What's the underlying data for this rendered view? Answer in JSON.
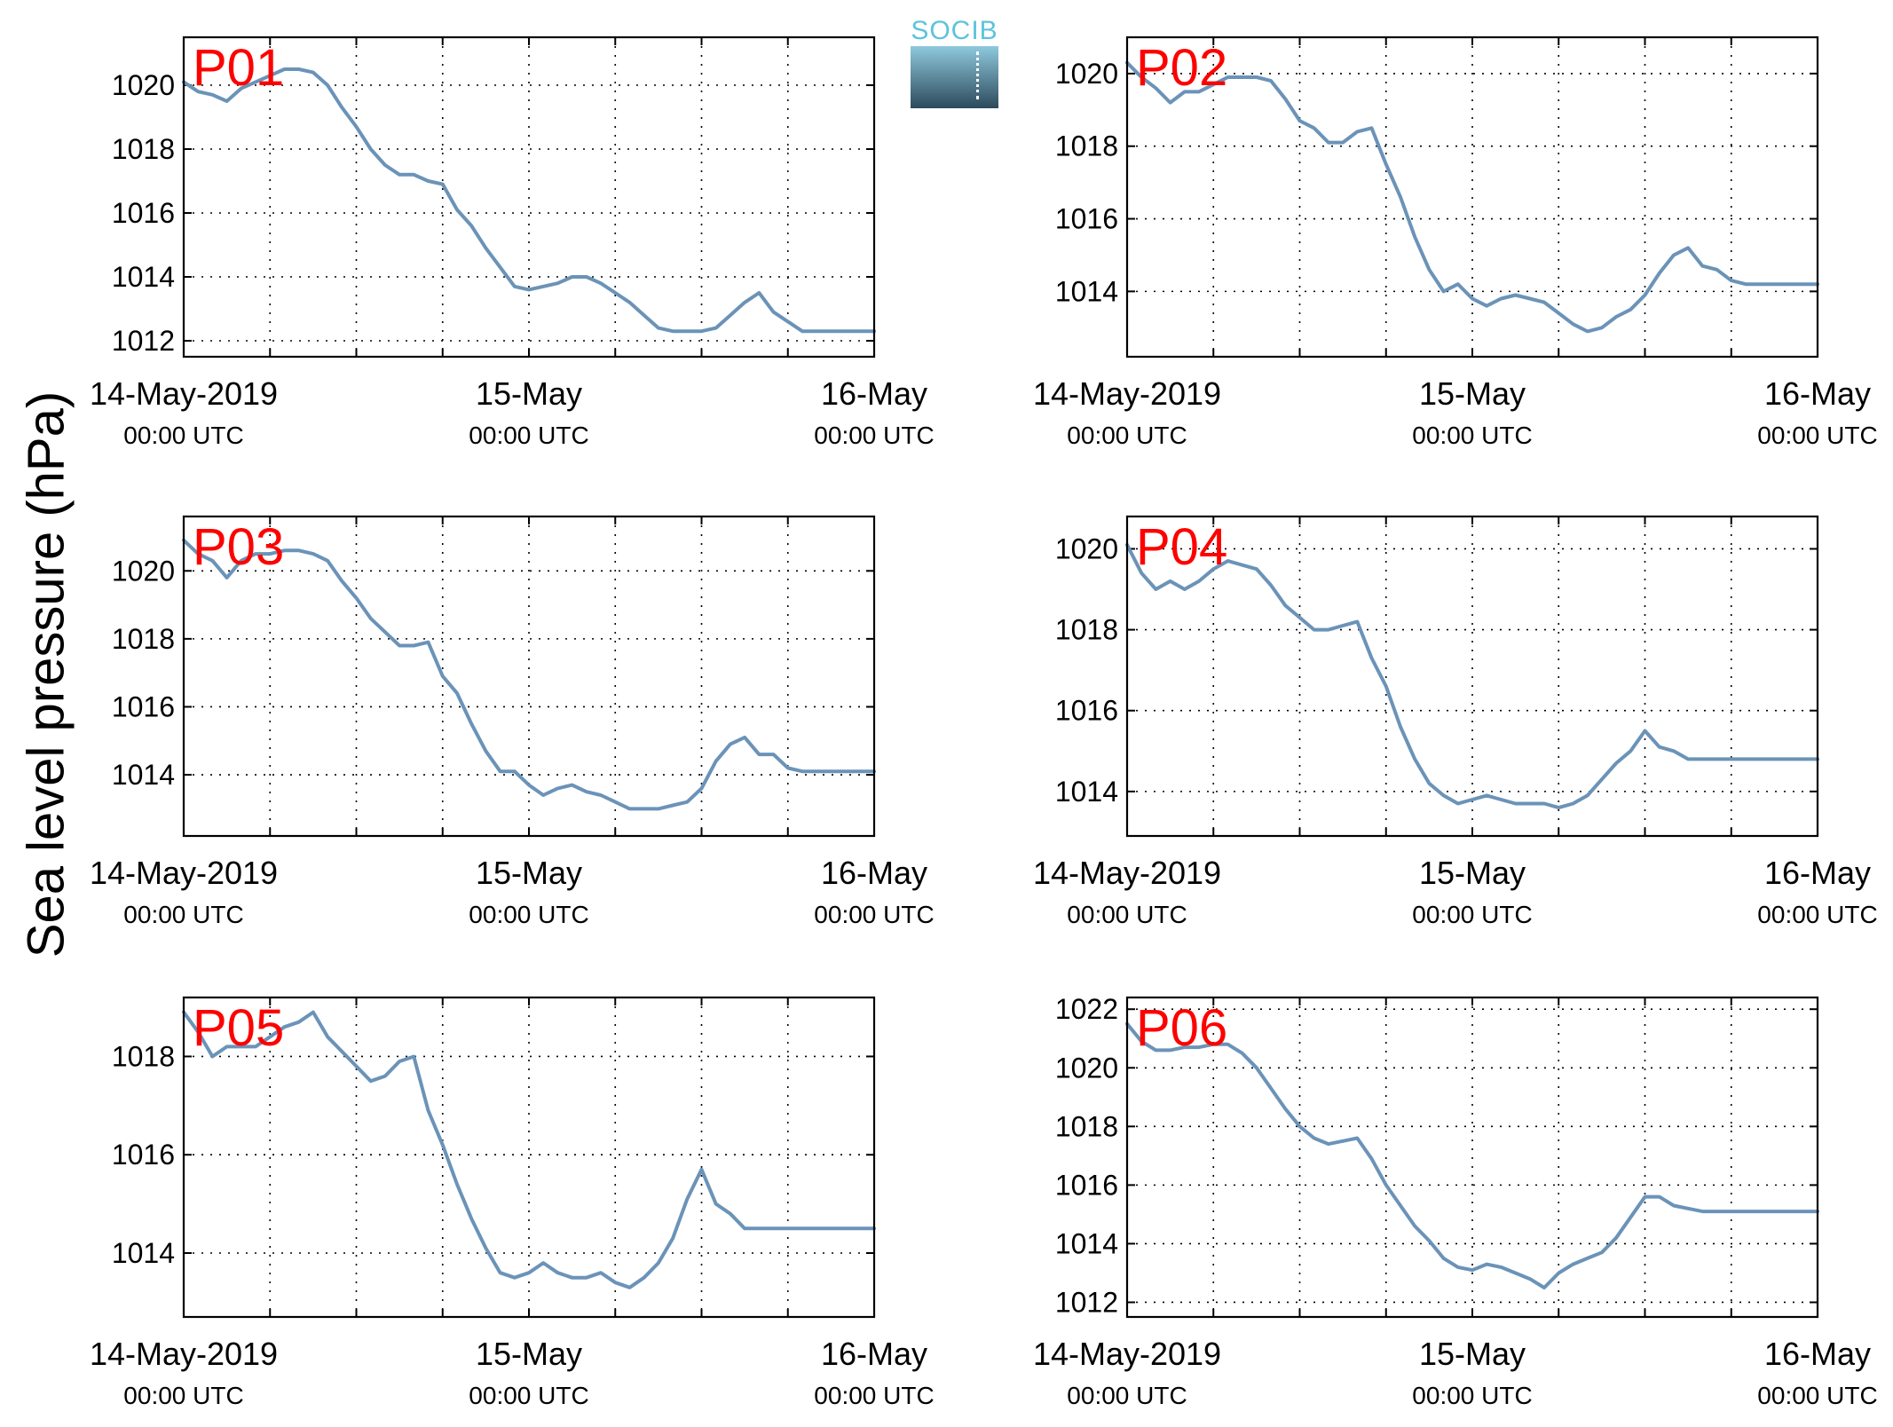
{
  "figure": {
    "ylabel": "Sea level pressure (hPa)",
    "logo_text": "SOCIB",
    "line_color": "#6b93b8",
    "station_label_color": "#ff0000"
  },
  "chart_data": [
    {
      "type": "line",
      "station": "P01",
      "x_range_hours": [
        0,
        48
      ],
      "ylim": [
        1011.5,
        1021.5
      ],
      "yticks": [
        1012,
        1014,
        1016,
        1018,
        1020
      ],
      "xtick_labels": [
        [
          "14-May-2019",
          "00:00 UTC"
        ],
        [
          "15-May",
          "00:00 UTC"
        ],
        [
          "16-May",
          "00:00 UTC"
        ]
      ],
      "grid": true,
      "series": [
        {
          "x_hours": [
            0,
            1,
            2,
            3,
            4,
            5,
            6,
            7,
            8,
            9,
            10,
            11,
            12,
            13,
            14,
            15,
            16,
            17,
            18,
            19,
            20,
            21,
            22,
            23,
            24,
            25,
            26,
            27,
            28,
            29,
            30,
            31,
            32,
            33,
            34,
            35,
            36,
            37,
            38,
            39,
            40,
            41,
            42,
            43,
            44,
            45,
            46,
            47,
            48
          ],
          "values": [
            1020.1,
            1019.8,
            1019.7,
            1019.5,
            1019.9,
            1020.1,
            1020.3,
            1020.5,
            1020.5,
            1020.4,
            1020.0,
            1019.3,
            1018.7,
            1018.0,
            1017.5,
            1017.2,
            1017.2,
            1017.0,
            1016.9,
            1016.1,
            1015.6,
            1014.9,
            1014.3,
            1013.7,
            1013.6,
            1013.7,
            1013.8,
            1014.0,
            1014.0,
            1013.8,
            1013.5,
            1013.2,
            1012.8,
            1012.4,
            1012.3,
            1012.3,
            1012.3,
            1012.4,
            1012.8,
            1013.2,
            1013.5,
            1012.9,
            1012.6,
            1012.3,
            1012.3,
            1012.3,
            1012.3,
            1012.3,
            1012.3
          ]
        }
      ]
    },
    {
      "type": "line",
      "station": "P02",
      "x_range_hours": [
        0,
        48
      ],
      "ylim": [
        1012.2,
        1021.0
      ],
      "yticks": [
        1014,
        1016,
        1018,
        1020
      ],
      "xtick_labels": [
        [
          "14-May-2019",
          "00:00 UTC"
        ],
        [
          "15-May",
          "00:00 UTC"
        ],
        [
          "16-May",
          "00:00 UTC"
        ]
      ],
      "grid": true,
      "series": [
        {
          "x_hours": [
            0,
            1,
            2,
            3,
            4,
            5,
            6,
            7,
            8,
            9,
            10,
            11,
            12,
            13,
            14,
            15,
            16,
            17,
            18,
            19,
            20,
            21,
            22,
            23,
            24,
            25,
            26,
            27,
            28,
            29,
            30,
            31,
            32,
            33,
            34,
            35,
            36,
            37,
            38,
            39,
            40,
            41,
            42,
            43,
            44,
            45,
            46,
            47,
            48
          ],
          "values": [
            1020.3,
            1019.9,
            1019.6,
            1019.2,
            1019.5,
            1019.5,
            1019.7,
            1019.9,
            1019.9,
            1019.9,
            1019.8,
            1019.3,
            1018.7,
            1018.5,
            1018.1,
            1018.1,
            1018.4,
            1018.5,
            1017.5,
            1016.6,
            1015.5,
            1014.6,
            1014.0,
            1014.2,
            1013.8,
            1013.6,
            1013.8,
            1013.9,
            1013.8,
            1013.7,
            1013.4,
            1013.1,
            1012.9,
            1013.0,
            1013.3,
            1013.5,
            1013.9,
            1014.5,
            1015.0,
            1015.2,
            1014.7,
            1014.6,
            1014.3,
            1014.2,
            1014.2,
            1014.2,
            1014.2,
            1014.2,
            1014.2
          ]
        }
      ]
    },
    {
      "type": "line",
      "station": "P03",
      "x_range_hours": [
        0,
        48
      ],
      "ylim": [
        1012.2,
        1021.6
      ],
      "yticks": [
        1014,
        1016,
        1018,
        1020
      ],
      "xtick_labels": [
        [
          "14-May-2019",
          "00:00 UTC"
        ],
        [
          "15-May",
          "00:00 UTC"
        ],
        [
          "16-May",
          "00:00 UTC"
        ]
      ],
      "grid": true,
      "series": [
        {
          "x_hours": [
            0,
            1,
            2,
            3,
            4,
            5,
            6,
            7,
            8,
            9,
            10,
            11,
            12,
            13,
            14,
            15,
            16,
            17,
            18,
            19,
            20,
            21,
            22,
            23,
            24,
            25,
            26,
            27,
            28,
            29,
            30,
            31,
            32,
            33,
            34,
            35,
            36,
            37,
            38,
            39,
            40,
            41,
            42,
            43,
            44,
            45,
            46,
            47,
            48
          ],
          "values": [
            1020.9,
            1020.5,
            1020.3,
            1019.8,
            1020.3,
            1020.5,
            1020.5,
            1020.6,
            1020.6,
            1020.5,
            1020.3,
            1019.7,
            1019.2,
            1018.6,
            1018.2,
            1017.8,
            1017.8,
            1017.9,
            1016.9,
            1016.4,
            1015.5,
            1014.7,
            1014.1,
            1014.1,
            1013.7,
            1013.4,
            1013.6,
            1013.7,
            1013.5,
            1013.4,
            1013.2,
            1013.0,
            1013.0,
            1013.0,
            1013.1,
            1013.2,
            1013.6,
            1014.4,
            1014.9,
            1015.1,
            1014.6,
            1014.6,
            1014.2,
            1014.1,
            1014.1,
            1014.1,
            1014.1,
            1014.1,
            1014.1
          ]
        }
      ]
    },
    {
      "type": "line",
      "station": "P04",
      "x_range_hours": [
        0,
        48
      ],
      "ylim": [
        1012.9,
        1020.8
      ],
      "yticks": [
        1014,
        1016,
        1018,
        1020
      ],
      "xtick_labels": [
        [
          "14-May-2019",
          "00:00 UTC"
        ],
        [
          "15-May",
          "00:00 UTC"
        ],
        [
          "16-May",
          "00:00 UTC"
        ]
      ],
      "grid": true,
      "series": [
        {
          "x_hours": [
            0,
            1,
            2,
            3,
            4,
            5,
            6,
            7,
            8,
            9,
            10,
            11,
            12,
            13,
            14,
            15,
            16,
            17,
            18,
            19,
            20,
            21,
            22,
            23,
            24,
            25,
            26,
            27,
            28,
            29,
            30,
            31,
            32,
            33,
            34,
            35,
            36,
            37,
            38,
            39,
            40,
            41,
            42,
            43,
            44,
            45,
            46,
            47,
            48
          ],
          "values": [
            1020.1,
            1019.4,
            1019.0,
            1019.2,
            1019.0,
            1019.2,
            1019.5,
            1019.7,
            1019.6,
            1019.5,
            1019.1,
            1018.6,
            1018.3,
            1018.0,
            1018.0,
            1018.1,
            1018.2,
            1017.3,
            1016.6,
            1015.6,
            1014.8,
            1014.2,
            1013.9,
            1013.7,
            1013.8,
            1013.9,
            1013.8,
            1013.7,
            1013.7,
            1013.7,
            1013.6,
            1013.7,
            1013.9,
            1014.3,
            1014.7,
            1015.0,
            1015.5,
            1015.1,
            1015.0,
            1014.8,
            1014.8,
            1014.8,
            1014.8,
            1014.8,
            1014.8,
            1014.8,
            1014.8,
            1014.8,
            1014.8
          ]
        }
      ]
    },
    {
      "type": "line",
      "station": "P05",
      "x_range_hours": [
        0,
        48
      ],
      "ylim": [
        1012.7,
        1019.2
      ],
      "yticks": [
        1014,
        1016,
        1018
      ],
      "xtick_labels": [
        [
          "14-May-2019",
          "00:00 UTC"
        ],
        [
          "15-May",
          "00:00 UTC"
        ],
        [
          "16-May",
          "00:00 UTC"
        ]
      ],
      "grid": true,
      "series": [
        {
          "x_hours": [
            0,
            1,
            2,
            3,
            4,
            5,
            6,
            7,
            8,
            9,
            10,
            11,
            12,
            13,
            14,
            15,
            16,
            17,
            18,
            19,
            20,
            21,
            22,
            23,
            24,
            25,
            26,
            27,
            28,
            29,
            30,
            31,
            32,
            33,
            34,
            35,
            36,
            37,
            38,
            39,
            40,
            41,
            42,
            43,
            44,
            45,
            46,
            47,
            48
          ],
          "values": [
            1018.9,
            1018.5,
            1018.0,
            1018.2,
            1018.2,
            1018.2,
            1018.4,
            1018.6,
            1018.7,
            1018.9,
            1018.4,
            1018.1,
            1017.8,
            1017.5,
            1017.6,
            1017.9,
            1018.0,
            1016.9,
            1016.2,
            1015.4,
            1014.7,
            1014.1,
            1013.6,
            1013.5,
            1013.6,
            1013.8,
            1013.6,
            1013.5,
            1013.5,
            1013.6,
            1013.4,
            1013.3,
            1013.5,
            1013.8,
            1014.3,
            1015.1,
            1015.7,
            1015.0,
            1014.8,
            1014.5,
            1014.5,
            1014.5,
            1014.5,
            1014.5,
            1014.5,
            1014.5,
            1014.5,
            1014.5,
            1014.5
          ]
        }
      ]
    },
    {
      "type": "line",
      "station": "P06",
      "x_range_hours": [
        0,
        48
      ],
      "ylim": [
        1011.5,
        1022.4
      ],
      "yticks": [
        1012,
        1014,
        1016,
        1018,
        1020,
        1022
      ],
      "xtick_labels": [
        [
          "14-May-2019",
          "00:00 UTC"
        ],
        [
          "15-May",
          "00:00 UTC"
        ],
        [
          "16-May",
          "00:00 UTC"
        ]
      ],
      "grid": true,
      "series": [
        {
          "x_hours": [
            0,
            1,
            2,
            3,
            4,
            5,
            6,
            7,
            8,
            9,
            10,
            11,
            12,
            13,
            14,
            15,
            16,
            17,
            18,
            19,
            20,
            21,
            22,
            23,
            24,
            25,
            26,
            27,
            28,
            29,
            30,
            31,
            32,
            33,
            34,
            35,
            36,
            37,
            38,
            39,
            40,
            41,
            42,
            43,
            44,
            45,
            46,
            47,
            48
          ],
          "values": [
            1021.5,
            1020.9,
            1020.6,
            1020.6,
            1020.7,
            1020.7,
            1020.8,
            1020.8,
            1020.5,
            1020.0,
            1019.3,
            1018.6,
            1018.0,
            1017.6,
            1017.4,
            1017.5,
            1017.6,
            1016.9,
            1016.0,
            1015.3,
            1014.6,
            1014.1,
            1013.5,
            1013.2,
            1013.1,
            1013.3,
            1013.2,
            1013.0,
            1012.8,
            1012.5,
            1013.0,
            1013.3,
            1013.5,
            1013.7,
            1014.2,
            1014.9,
            1015.6,
            1015.6,
            1015.3,
            1015.2,
            1015.1,
            1015.1,
            1015.1,
            1015.1,
            1015.1,
            1015.1,
            1015.1,
            1015.1,
            1015.1
          ]
        }
      ]
    }
  ]
}
